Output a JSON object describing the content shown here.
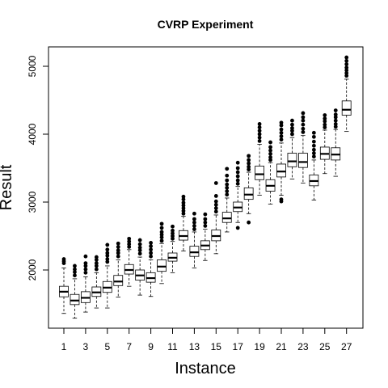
{
  "chart_data": {
    "type": "boxplot",
    "title": "CVRP Experiment",
    "xlabel": "Instance",
    "ylabel": "Result",
    "categories": [
      "1",
      "2",
      "3",
      "4",
      "5",
      "6",
      "7",
      "8",
      "9",
      "10",
      "11",
      "12",
      "13",
      "14",
      "15",
      "16",
      "17",
      "18",
      "19",
      "20",
      "21",
      "22",
      "23",
      "24",
      "25",
      "26",
      "27"
    ],
    "x_tick_labels": [
      "1",
      "3",
      "5",
      "7",
      "9",
      "11",
      "13",
      "15",
      "17",
      "19",
      "21",
      "23",
      "25",
      "27"
    ],
    "y_ticks": [
      2000,
      3000,
      4000,
      5000
    ],
    "ylim": [
      1100,
      5300
    ],
    "grid": false,
    "legend": "none",
    "boxes": [
      {
        "instance": "1",
        "whisker_low": 1360,
        "q1": 1605,
        "median": 1680,
        "q3": 1760,
        "whisker_high": 2030,
        "outliers": [
          2100,
          2130,
          2160
        ]
      },
      {
        "instance": "2",
        "whisker_low": 1290,
        "q1": 1490,
        "median": 1550,
        "q3": 1640,
        "whisker_high": 1870,
        "outliers": [
          1920,
          1970,
          2010,
          2060
        ]
      },
      {
        "instance": "3",
        "whisker_low": 1380,
        "q1": 1520,
        "median": 1590,
        "q3": 1680,
        "whisker_high": 1900,
        "outliers": [
          1960,
          2010,
          2060,
          2100,
          2200
        ]
      },
      {
        "instance": "4",
        "whisker_low": 1440,
        "q1": 1610,
        "median": 1670,
        "q3": 1750,
        "whisker_high": 1960,
        "outliers": [
          2010,
          2060,
          2100,
          2150,
          2190
        ]
      },
      {
        "instance": "5",
        "whisker_low": 1440,
        "q1": 1670,
        "median": 1740,
        "q3": 1830,
        "whisker_high": 2060,
        "outliers": [
          2120,
          2160,
          2210,
          2250,
          2300,
          2370
        ]
      },
      {
        "instance": "6",
        "whisker_low": 1600,
        "q1": 1770,
        "median": 1830,
        "q3": 1920,
        "whisker_high": 2150,
        "outliers": [
          2200,
          2250,
          2290,
          2340,
          2390
        ]
      },
      {
        "instance": "7",
        "whisker_low": 1760,
        "q1": 1940,
        "median": 2000,
        "q3": 2080,
        "whisker_high": 2300,
        "outliers": [
          2340,
          2380,
          2420,
          2460
        ]
      },
      {
        "instance": "8",
        "whisker_low": 1630,
        "q1": 1850,
        "median": 1920,
        "q3": 2000,
        "whisker_high": 2190,
        "outliers": [
          2240,
          2290,
          2330,
          2380,
          2440
        ]
      },
      {
        "instance": "9",
        "whisker_low": 1610,
        "q1": 1820,
        "median": 1880,
        "q3": 1960,
        "whisker_high": 2150,
        "outliers": [
          2200,
          2250,
          2300,
          2350,
          2400
        ]
      },
      {
        "instance": "10",
        "whisker_low": 1800,
        "q1": 1980,
        "median": 2050,
        "q3": 2150,
        "whisker_high": 2390,
        "outliers": [
          2430,
          2480,
          2520,
          2560,
          2620,
          2680
        ]
      },
      {
        "instance": "11",
        "whisker_low": 1960,
        "q1": 2130,
        "median": 2180,
        "q3": 2250,
        "whisker_high": 2420,
        "outliers": [
          2460,
          2500,
          2540,
          2580,
          2640
        ]
      },
      {
        "instance": "12",
        "whisker_low": 2280,
        "q1": 2440,
        "median": 2500,
        "q3": 2580,
        "whisker_high": 2790,
        "outliers": [
          2830,
          2870,
          2910,
          2950,
          2990,
          3040,
          3080
        ]
      },
      {
        "instance": "13",
        "whisker_low": 2030,
        "q1": 2200,
        "median": 2260,
        "q3": 2350,
        "whisker_high": 2560,
        "outliers": [
          2600,
          2650,
          2700,
          2750,
          2830
        ]
      },
      {
        "instance": "14",
        "whisker_low": 2140,
        "q1": 2300,
        "median": 2360,
        "q3": 2430,
        "whisker_high": 2600,
        "outliers": [
          2650,
          2700,
          2750,
          2820
        ]
      },
      {
        "instance": "15",
        "whisker_low": 2240,
        "q1": 2430,
        "median": 2500,
        "q3": 2590,
        "whisker_high": 2810,
        "outliers": [
          2860,
          2910,
          2960,
          3010,
          3090,
          3280
        ]
      },
      {
        "instance": "16",
        "whisker_low": 2560,
        "q1": 2700,
        "median": 2760,
        "q3": 2850,
        "whisker_high": 3060,
        "outliers": [
          3110,
          3160,
          3210,
          3260,
          3320,
          3390,
          3490
        ]
      },
      {
        "instance": "17",
        "whisker_low": 2700,
        "q1": 2860,
        "median": 2920,
        "q3": 3000,
        "whisker_high": 3230,
        "outliers": [
          2620,
          3270,
          3320,
          3380,
          3440,
          3500,
          3580
        ]
      },
      {
        "instance": "18",
        "whisker_low": 2830,
        "q1": 3040,
        "median": 3110,
        "q3": 3210,
        "whisker_high": 3440,
        "outliers": [
          2700,
          3480,
          3520,
          3570,
          3620,
          3680
        ]
      },
      {
        "instance": "19",
        "whisker_low": 3100,
        "q1": 3330,
        "median": 3410,
        "q3": 3530,
        "whisker_high": 3850,
        "outliers": [
          3900,
          3950,
          4000,
          4050,
          4100,
          4150
        ]
      },
      {
        "instance": "20",
        "whisker_low": 2970,
        "q1": 3160,
        "median": 3240,
        "q3": 3330,
        "whisker_high": 3580,
        "outliers": [
          3620,
          3660,
          3710,
          3760,
          3810,
          3880
        ]
      },
      {
        "instance": "21",
        "whisker_low": 3100,
        "q1": 3370,
        "median": 3450,
        "q3": 3560,
        "whisker_high": 3870,
        "outliers": [
          3010,
          3040,
          3920,
          3970,
          4020,
          4070,
          4130,
          4170
        ]
      },
      {
        "instance": "22",
        "whisker_low": 3340,
        "q1": 3520,
        "median": 3600,
        "q3": 3720,
        "whisker_high": 3950,
        "outliers": [
          4000,
          4050,
          4090,
          4140,
          4200
        ]
      },
      {
        "instance": "23",
        "whisker_low": 3280,
        "q1": 3510,
        "median": 3590,
        "q3": 3720,
        "whisker_high": 3980,
        "outliers": [
          4030,
          4080,
          4140,
          4200,
          4250,
          4310
        ]
      },
      {
        "instance": "24",
        "whisker_low": 3030,
        "q1": 3240,
        "median": 3310,
        "q3": 3400,
        "whisker_high": 3620,
        "outliers": [
          3670,
          3720,
          3770,
          3830,
          3890,
          3960,
          4020
        ]
      },
      {
        "instance": "25",
        "whisker_low": 3420,
        "q1": 3630,
        "median": 3710,
        "q3": 3810,
        "whisker_high": 4060,
        "outliers": [
          4100,
          4140,
          4190,
          4230,
          4280
        ]
      },
      {
        "instance": "26",
        "whisker_low": 3380,
        "q1": 3620,
        "median": 3700,
        "q3": 3800,
        "whisker_high": 4070,
        "outliers": [
          4110,
          4150,
          4200,
          4250,
          4290,
          4350
        ]
      },
      {
        "instance": "27",
        "whisker_low": 4040,
        "q1": 4280,
        "median": 4360,
        "q3": 4490,
        "whisker_high": 4810,
        "outliers": [
          4860,
          4900,
          4940,
          4980,
          5030,
          5080,
          5130
        ]
      }
    ]
  }
}
